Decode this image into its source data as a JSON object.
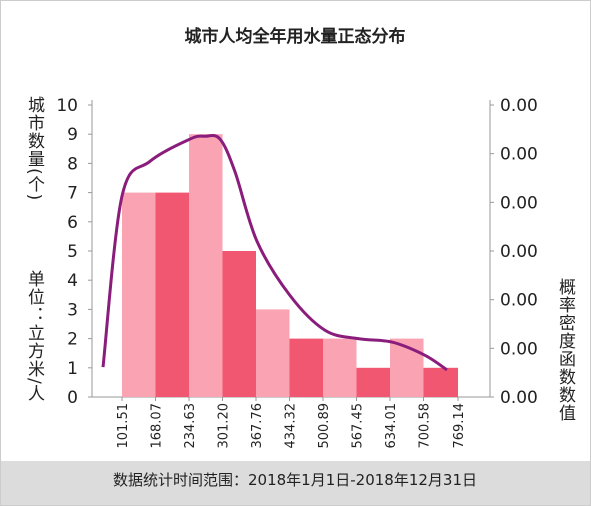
{
  "chart_data": {
    "type": "histogram",
    "title": "城市人均全年用水量正态分布",
    "ylabel": "城市数量(个)",
    "unit_label": "单位：立方米/人",
    "y2label": "概率密度函数数值",
    "footer": "数据统计时间范围：2018年1月1日-2018年12月31日",
    "bins": [
      101.51,
      168.07,
      234.63,
      301.2,
      367.76,
      434.32,
      500.89,
      567.45,
      634.01,
      700.58,
      769.14
    ],
    "counts": [
      7,
      7,
      9,
      5,
      3,
      2,
      2,
      1,
      2,
      1
    ],
    "colors": [
      "#f9a3b3",
      "#f25772",
      "#f9a3b3",
      "#f25772",
      "#f9a3b3",
      "#f25772",
      "#f9a3b3",
      "#f25772",
      "#f9a3b3",
      "#f25772"
    ],
    "xlim": [
      41.9,
      832.7
    ],
    "xticks": [
      {
        "value": 101.51,
        "label": "101.51"
      },
      {
        "value": 168.07,
        "label": "168.07"
      },
      {
        "value": 234.63,
        "label": "234.63"
      },
      {
        "value": 301.2,
        "label": "301.20"
      },
      {
        "value": 367.76,
        "label": "367.76"
      },
      {
        "value": 434.32,
        "label": "434.32"
      },
      {
        "value": 500.89,
        "label": "500.89"
      },
      {
        "value": 567.45,
        "label": "567.45"
      },
      {
        "value": 634.01,
        "label": "634.01"
      },
      {
        "value": 700.58,
        "label": "700.58"
      },
      {
        "value": 769.14,
        "label": "769.14"
      }
    ],
    "ylim": [
      0,
      10
    ],
    "yticks": [
      0,
      1,
      2,
      3,
      4,
      5,
      6,
      7,
      8,
      9,
      10
    ],
    "y2lim": [
      0,
      0.0042
    ],
    "y2ticks": [
      {
        "value": 0,
        "label": "0.00"
      },
      {
        "value": 0.0007,
        "label": "0.00"
      },
      {
        "value": 0.0014,
        "label": "0.00"
      },
      {
        "value": 0.0021,
        "label": "0.00"
      },
      {
        "value": 0.0028,
        "label": "0.00"
      },
      {
        "value": 0.0035,
        "label": "0.00"
      },
      {
        "value": 0.0042,
        "label": "0.00"
      }
    ],
    "density": {
      "axis": "y2",
      "color": "#8a1c7c",
      "x": [
        63.8,
        101.5,
        157.1,
        236.6,
        266.4,
        296.2,
        326.0,
        369.7,
        435.3,
        504.8,
        570.4,
        637.9,
        703.5,
        747.2
      ],
      "values": [
        0.00043,
        0.00289,
        0.00339,
        0.00371,
        0.00375,
        0.00371,
        0.00324,
        0.00224,
        0.00146,
        0.00096,
        0.00084,
        0.00079,
        0.0006,
        0.00039
      ]
    }
  }
}
